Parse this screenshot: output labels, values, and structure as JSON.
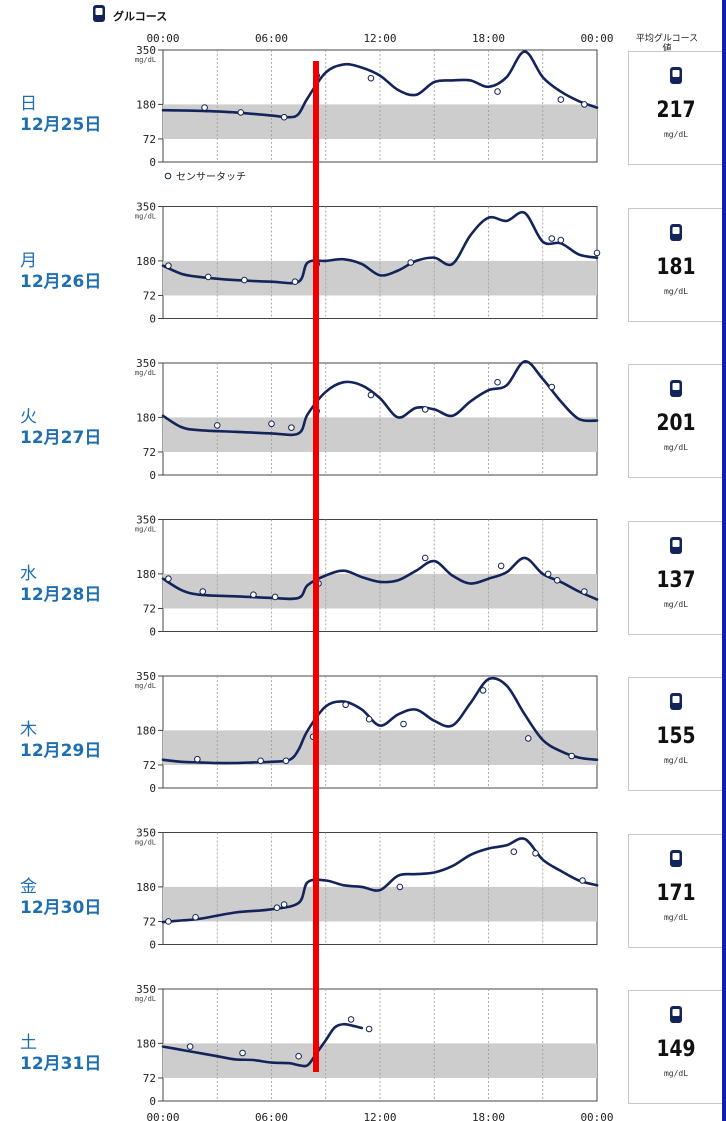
{
  "header": {
    "title": "グルコース",
    "avg_title": "平均グルコース値",
    "legend_sensor": "センサータッチ"
  },
  "unit": "mg/dL",
  "colors": {
    "line": "#13245a",
    "target_band": "#cdcdcd",
    "accent_text": "#1f6fb0",
    "marker": "#ee0000",
    "right_strip": "#0d1fb0"
  },
  "chart_data": {
    "type": "line",
    "ylabel": "mg/dL",
    "x_ticks": [
      "00:00",
      "06:00",
      "12:00",
      "18:00",
      "00:00"
    ],
    "y_ticks": [
      0,
      72,
      180,
      350
    ],
    "ylim": [
      0,
      350
    ],
    "xlim_hours": [
      0,
      24
    ],
    "target_range": [
      72,
      180
    ],
    "grid": "vertical-dashed",
    "days": [
      {
        "weekday": "日",
        "date": "12月25日",
        "avg": 217,
        "avg_unit": "mg/dL",
        "x": [
          0,
          2,
          4,
          6,
          7,
          7.5,
          8,
          9,
          10,
          11,
          12,
          13,
          14,
          15,
          16,
          17,
          18,
          19,
          20,
          21,
          22,
          23,
          24
        ],
        "y": [
          162,
          160,
          155,
          145,
          140,
          150,
          200,
          280,
          305,
          295,
          270,
          225,
          210,
          250,
          255,
          255,
          235,
          265,
          345,
          265,
          220,
          190,
          170
        ],
        "points": [
          [
            2.3,
            170
          ],
          [
            4.3,
            155
          ],
          [
            6.7,
            140
          ],
          [
            8.5,
            270
          ],
          [
            11.5,
            262
          ],
          [
            18.5,
            220
          ],
          [
            22,
            195
          ],
          [
            23.3,
            180
          ]
        ]
      },
      {
        "weekday": "月",
        "date": "12月26日",
        "avg": 181,
        "avg_unit": "mg/dL",
        "x": [
          0,
          1,
          2,
          4,
          6,
          7.5,
          8,
          9,
          10,
          11,
          12,
          13,
          14,
          15,
          16,
          17,
          18,
          19,
          20,
          21,
          22,
          23,
          24
        ],
        "y": [
          165,
          140,
          130,
          120,
          115,
          115,
          175,
          180,
          185,
          170,
          135,
          150,
          180,
          190,
          170,
          260,
          315,
          305,
          330,
          240,
          235,
          200,
          190
        ],
        "points": [
          [
            0.3,
            165
          ],
          [
            2.5,
            130
          ],
          [
            4.5,
            120
          ],
          [
            7.3,
            115
          ],
          [
            8.5,
            170
          ],
          [
            13.7,
            175
          ],
          [
            21.5,
            250
          ],
          [
            22,
            245
          ],
          [
            24,
            205
          ]
        ]
      },
      {
        "weekday": "火",
        "date": "12月27日",
        "avg": 201,
        "avg_unit": "mg/dL",
        "x": [
          0,
          1,
          2,
          4,
          6,
          7.5,
          8,
          9,
          10,
          11,
          12,
          13,
          14,
          15,
          16,
          17,
          18,
          19,
          20,
          21,
          22,
          23,
          24
        ],
        "y": [
          185,
          150,
          140,
          135,
          130,
          130,
          190,
          260,
          290,
          280,
          240,
          180,
          210,
          205,
          185,
          230,
          265,
          280,
          355,
          300,
          230,
          175,
          170
        ],
        "points": [
          [
            3,
            155
          ],
          [
            6,
            160
          ],
          [
            7.1,
            148
          ],
          [
            8.5,
            200
          ],
          [
            11.5,
            250
          ],
          [
            14.5,
            205
          ],
          [
            18.5,
            290
          ],
          [
            21.5,
            275
          ]
        ]
      },
      {
        "weekday": "水",
        "date": "12月28日",
        "avg": 137,
        "avg_unit": "mg/dL",
        "x": [
          0,
          1,
          2,
          4,
          6,
          7.5,
          8,
          9,
          10,
          11,
          12,
          13,
          14,
          15,
          16,
          17,
          18,
          19,
          20,
          21,
          22,
          23,
          24
        ],
        "y": [
          165,
          130,
          115,
          110,
          105,
          105,
          145,
          175,
          190,
          170,
          155,
          160,
          190,
          220,
          175,
          150,
          165,
          185,
          230,
          180,
          155,
          125,
          100
        ],
        "points": [
          [
            0.3,
            165
          ],
          [
            2.2,
            125
          ],
          [
            5,
            115
          ],
          [
            6.2,
            108
          ],
          [
            8.6,
            150
          ],
          [
            14.5,
            230
          ],
          [
            18.7,
            205
          ],
          [
            21.3,
            180
          ],
          [
            21.8,
            160
          ],
          [
            23.3,
            125
          ]
        ]
      },
      {
        "weekday": "木",
        "date": "12月29日",
        "avg": 155,
        "avg_unit": "mg/dL",
        "x": [
          0,
          1,
          2,
          3,
          4,
          5,
          6,
          7,
          7.5,
          8,
          9,
          10,
          11,
          12,
          13,
          14,
          15,
          16,
          17,
          18,
          19,
          20,
          21,
          22,
          23,
          24
        ],
        "y": [
          88,
          82,
          80,
          78,
          78,
          80,
          82,
          88,
          120,
          180,
          255,
          270,
          245,
          195,
          230,
          245,
          210,
          195,
          265,
          340,
          320,
          230,
          150,
          115,
          95,
          88
        ],
        "points": [
          [
            1.9,
            90
          ],
          [
            5.4,
            85
          ],
          [
            6.8,
            85
          ],
          [
            8.3,
            160
          ],
          [
            10.1,
            260
          ],
          [
            11.4,
            215
          ],
          [
            13.3,
            200
          ],
          [
            17.7,
            305
          ],
          [
            20.2,
            155
          ],
          [
            22.6,
            100
          ]
        ]
      },
      {
        "weekday": "金",
        "date": "12月30日",
        "avg": 171,
        "avg_unit": "mg/dL",
        "x": [
          0,
          1,
          2,
          4,
          6,
          7.5,
          8,
          9,
          10,
          11,
          12,
          13,
          14,
          15,
          16,
          17,
          18,
          19,
          20,
          21,
          22,
          23,
          24
        ],
        "y": [
          70,
          75,
          80,
          100,
          110,
          130,
          195,
          200,
          185,
          180,
          170,
          215,
          220,
          225,
          245,
          280,
          300,
          310,
          330,
          265,
          230,
          200,
          185
        ],
        "points": [
          [
            0.3,
            72
          ],
          [
            1.8,
            85
          ],
          [
            6.3,
            115
          ],
          [
            6.7,
            125
          ],
          [
            13.1,
            180
          ],
          [
            19.4,
            290
          ],
          [
            20.6,
            285
          ],
          [
            23.2,
            200
          ]
        ]
      },
      {
        "weekday": "土",
        "date": "12月31日",
        "avg": 149,
        "avg_unit": "mg/dL",
        "x": [
          0,
          1,
          2,
          3,
          4,
          5,
          6,
          7,
          7.5,
          8,
          8.5,
          9,
          9.5,
          10,
          10.5,
          11
        ],
        "y": [
          170,
          160,
          150,
          140,
          130,
          128,
          120,
          118,
          112,
          112,
          150,
          190,
          230,
          240,
          235,
          228
        ],
        "points": [
          [
            1.5,
            170
          ],
          [
            4.4,
            150
          ],
          [
            7.5,
            140
          ],
          [
            10.4,
            255
          ],
          [
            11.4,
            225
          ]
        ]
      }
    ]
  }
}
